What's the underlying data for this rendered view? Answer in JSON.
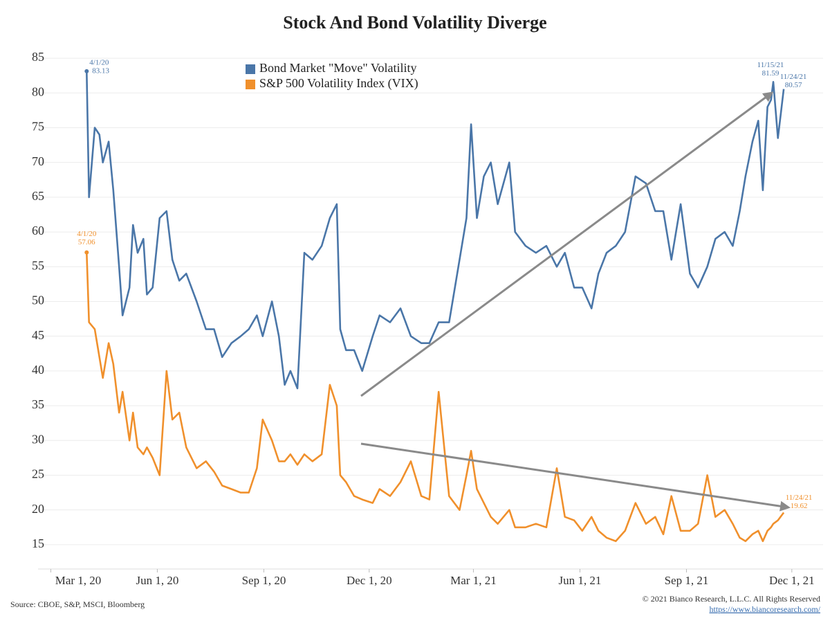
{
  "chart_data": {
    "type": "line",
    "title": "Stock And Bond Volatility Diverge",
    "x": [
      "2020-04-01",
      "2020-04-03",
      "2020-04-08",
      "2020-04-12",
      "2020-04-15",
      "2020-04-20",
      "2020-04-24",
      "2020-04-29",
      "2020-05-02",
      "2020-05-08",
      "2020-05-11",
      "2020-05-15",
      "2020-05-20",
      "2020-05-23",
      "2020-05-28",
      "2020-06-03",
      "2020-06-09",
      "2020-06-14",
      "2020-06-20",
      "2020-06-26",
      "2020-07-05",
      "2020-07-13",
      "2020-07-20",
      "2020-07-27",
      "2020-08-04",
      "2020-08-12",
      "2020-08-19",
      "2020-08-26",
      "2020-08-31",
      "2020-09-08",
      "2020-09-14",
      "2020-09-19",
      "2020-09-24",
      "2020-09-30",
      "2020-10-06",
      "2020-10-13",
      "2020-10-21",
      "2020-10-28",
      "2020-11-03",
      "2020-11-06",
      "2020-11-11",
      "2020-11-18",
      "2020-11-25",
      "2020-12-04",
      "2020-12-10",
      "2020-12-19",
      "2020-12-28",
      "2021-01-06",
      "2021-01-15",
      "2021-01-22",
      "2021-01-30",
      "2021-02-08",
      "2021-02-17",
      "2021-02-23",
      "2021-02-27",
      "2021-03-04",
      "2021-03-10",
      "2021-03-16",
      "2021-03-22",
      "2021-04-01",
      "2021-04-06",
      "2021-04-15",
      "2021-04-24",
      "2021-05-03",
      "2021-05-12",
      "2021-05-19",
      "2021-05-27",
      "2021-06-03",
      "2021-06-11",
      "2021-06-17",
      "2021-06-24",
      "2021-07-02",
      "2021-07-10",
      "2021-07-19",
      "2021-07-28",
      "2021-08-05",
      "2021-08-12",
      "2021-08-19",
      "2021-08-27",
      "2021-09-04",
      "2021-09-11",
      "2021-09-19",
      "2021-09-26",
      "2021-10-04",
      "2021-10-11",
      "2021-10-17",
      "2021-10-22",
      "2021-10-28",
      "2021-11-02",
      "2021-11-06",
      "2021-11-10",
      "2021-11-13",
      "2021-11-15",
      "2021-11-19",
      "2021-11-24"
    ],
    "series": [
      {
        "name": "Bond Market \"Move\" Volatility",
        "color": "#4a76a8",
        "values": [
          83.13,
          65,
          75,
          74,
          70,
          73,
          66,
          55,
          48,
          52,
          61,
          57,
          59,
          51,
          52,
          62,
          63,
          56,
          53,
          54,
          50,
          46,
          46,
          42,
          44,
          45,
          46,
          48,
          45,
          50,
          45,
          38,
          40,
          37.5,
          57,
          56,
          58,
          62,
          64,
          46,
          43,
          43,
          40,
          45,
          48,
          47,
          49,
          45,
          44,
          44,
          47,
          47,
          56,
          62,
          75.5,
          62,
          68,
          70,
          64,
          70,
          60,
          58,
          57,
          58,
          55,
          57,
          52,
          52,
          49,
          54,
          57,
          58,
          60,
          68,
          67,
          63,
          63,
          56,
          64,
          54,
          52,
          55,
          59,
          60,
          58,
          63,
          68,
          73,
          76,
          66,
          78,
          79,
          81.59,
          73.5,
          80.57
        ]
      },
      {
        "name": "S&P 500 Volatility Index (VIX)",
        "color": "#f0902c",
        "values": [
          57.06,
          47,
          46,
          42,
          39,
          44,
          41,
          34,
          37,
          30,
          34,
          29,
          28,
          29,
          27.5,
          25,
          40,
          33,
          34,
          29,
          26,
          27,
          25.5,
          23.5,
          23,
          22.5,
          22.5,
          26,
          33,
          30,
          27,
          27,
          28,
          26.5,
          28,
          27,
          28,
          38,
          35,
          25,
          24,
          22,
          21.5,
          21,
          23,
          22,
          24,
          27,
          22,
          21.5,
          37,
          22,
          20,
          25,
          28.5,
          23,
          21,
          19,
          18,
          20,
          17.5,
          17.5,
          18,
          17.5,
          26,
          19,
          18.5,
          17,
          19,
          17,
          16,
          15.5,
          17,
          21,
          18,
          19,
          16.5,
          22,
          17,
          17,
          18,
          25,
          19,
          20,
          18,
          16,
          15.5,
          16.5,
          17,
          15.5,
          17,
          17.5,
          18,
          18.5,
          19.62
        ]
      }
    ],
    "annotations": [
      "4/1/20",
      "11/15/21",
      "11/24/21"
    ],
    "xlim": [
      "2020-02-19",
      "2021-12-28"
    ],
    "xticks": [
      {
        "value": "2020-03-01",
        "label": "Mar 1, 20"
      },
      {
        "value": "2020-06-01",
        "label": "Jun 1, 20"
      },
      {
        "value": "2020-09-01",
        "label": "Sep 1, 20"
      },
      {
        "value": "2020-12-01",
        "label": "Dec 1, 20"
      },
      {
        "value": "2021-03-01",
        "label": "Mar 1, 21"
      },
      {
        "value": "2021-06-01",
        "label": "Jun 1, 21"
      },
      {
        "value": "2021-09-01",
        "label": "Sep 1, 21"
      },
      {
        "value": "2021-12-01",
        "label": "Dec 1, 21"
      }
    ],
    "ylim": [
      11.5,
      87.2
    ],
    "yticks": [
      15,
      20,
      25,
      30,
      35,
      40,
      45,
      50,
      55,
      60,
      65,
      70,
      75,
      80,
      85
    ],
    "grid": true,
    "legend": "top",
    "source": "Source: CBOE, S&P, MSCI, Bloomberg",
    "copyright": "© 2021 Bianco Research, L.L.C. All Rights Reserved",
    "url": "https://www.biancoresearch.com/"
  }
}
